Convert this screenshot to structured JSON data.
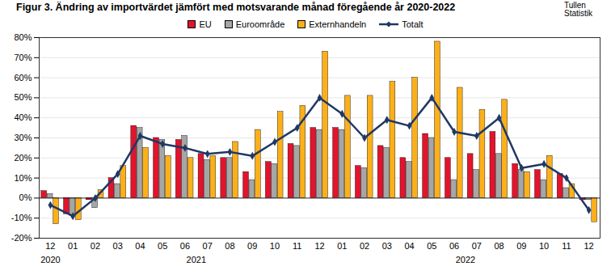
{
  "chart_data": {
    "type": "bar",
    "title": "Figur 3. Ändring av importvärdet jämfört med motsvarande månad föregående år 2020-2022",
    "source": "Tullen Statistik",
    "categories": [
      "12",
      "01",
      "02",
      "03",
      "04",
      "05",
      "06",
      "07",
      "08",
      "09",
      "10",
      "11",
      "12",
      "01",
      "02",
      "03",
      "04",
      "05",
      "06",
      "07",
      "08",
      "09",
      "10",
      "11",
      "12"
    ],
    "year_groups": [
      {
        "label": "2020",
        "count": 1
      },
      {
        "label": "2021",
        "count": 12
      },
      {
        "label": "2022",
        "count": 12
      }
    ],
    "series": [
      {
        "name": "EU",
        "type": "bar",
        "color": "#e3132c",
        "values": [
          3.5,
          -8,
          -1,
          10,
          36,
          30,
          29,
          22,
          20,
          13,
          18,
          27,
          35,
          35,
          16,
          26,
          20,
          32,
          20,
          22,
          33,
          17,
          14,
          12,
          -1
        ]
      },
      {
        "name": "Euroområde",
        "type": "bar",
        "color": "#a6a6a6",
        "values": [
          2,
          -9,
          -5,
          7,
          35,
          29,
          31,
          19,
          20,
          9,
          17,
          26,
          34,
          34,
          15,
          25,
          18,
          30,
          9,
          14,
          22,
          14,
          9,
          5,
          -1
        ]
      },
      {
        "name": "Externhandeln",
        "type": "bar",
        "color": "#fbb01b",
        "values": [
          -13,
          -11,
          4,
          16,
          25,
          21,
          20,
          21,
          28,
          34,
          43,
          46,
          73,
          51,
          51,
          58,
          60,
          78,
          55,
          44,
          49,
          13,
          21,
          7,
          -12
        ]
      },
      {
        "name": "Totalt",
        "type": "line",
        "color": "#1f3864",
        "marker": "diamond",
        "values": [
          -3.5,
          -9,
          0,
          12,
          31,
          27,
          25,
          22,
          23,
          21,
          28,
          35,
          50,
          42,
          30,
          39,
          36,
          50,
          33,
          31,
          40,
          15,
          17,
          10,
          -6
        ]
      }
    ],
    "ylim": [
      -20,
      80
    ],
    "yticks": [
      {
        "value": -20,
        "label": "-20%"
      },
      {
        "value": -10,
        "label": "-10%"
      },
      {
        "value": 0,
        "label": "0%"
      },
      {
        "value": 10,
        "label": "10%"
      },
      {
        "value": 20,
        "label": "20%"
      },
      {
        "value": 30,
        "label": "30%"
      },
      {
        "value": 40,
        "label": "40%"
      },
      {
        "value": 50,
        "label": "50%"
      },
      {
        "value": 60,
        "label": "60%"
      },
      {
        "value": 70,
        "label": "70%"
      },
      {
        "value": 80,
        "label": "80%"
      }
    ],
    "grid": true
  }
}
